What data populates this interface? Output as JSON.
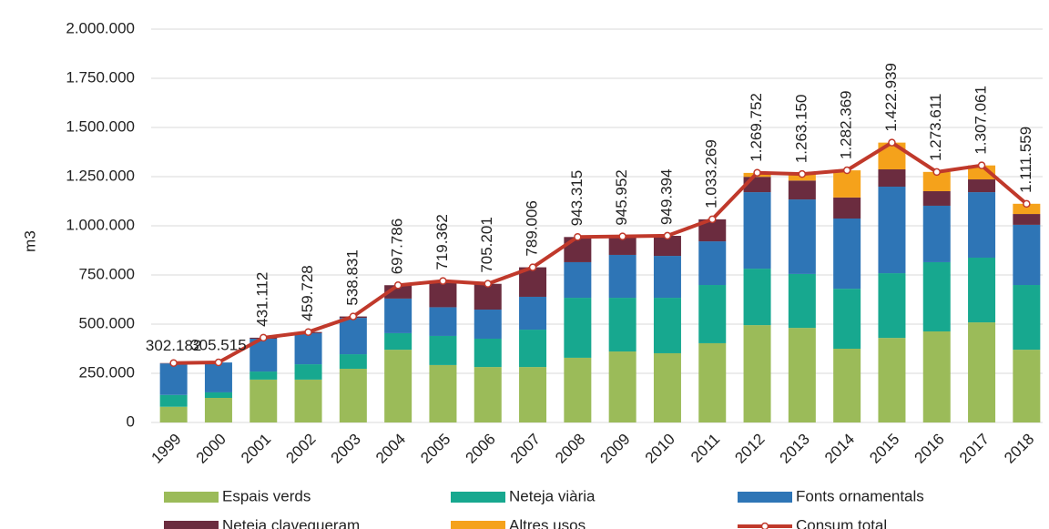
{
  "chart_data": {
    "type": "bar",
    "stacked": true,
    "y_label": "m3",
    "categories": [
      "1999",
      "2000",
      "2001",
      "2002",
      "2003",
      "2004",
      "2005",
      "2006",
      "2007",
      "2008",
      "2009",
      "2010",
      "2011",
      "2012",
      "2013",
      "2014",
      "2015",
      "2016",
      "2017",
      "2018"
    ],
    "ylim": [
      0,
      2000000
    ],
    "yticks": [
      0,
      {
        "value": 250000,
        "label": "250.000"
      },
      {
        "value": 500000,
        "label": "500.000"
      },
      {
        "value": 750000,
        "label": "750.000"
      },
      {
        "value": 1000000,
        "label": "1.000.000"
      },
      {
        "value": 1250000,
        "label": "1.250.000"
      },
      {
        "value": 1500000,
        "label": "1.500.000"
      },
      {
        "value": 1750000,
        "label": "1.750.000"
      },
      {
        "value": 2000000,
        "label": "2.000.000"
      }
    ],
    "grid": true,
    "series": [
      {
        "name": "Espais verds",
        "color": "#9bbb59",
        "values": [
          80000,
          125000,
          218000,
          218000,
          273000,
          370000,
          292000,
          282000,
          282000,
          329000,
          361000,
          352000,
          403000,
          495000,
          481000,
          375000,
          430000,
          463000,
          509000,
          370000
        ]
      },
      {
        "name": "Neteja viària",
        "color": "#17a88f",
        "values": [
          60000,
          28000,
          41000,
          78000,
          74000,
          84000,
          148000,
          144000,
          190000,
          305000,
          273000,
          282000,
          296000,
          287000,
          274000,
          305000,
          329000,
          352000,
          329000,
          329000
        ]
      },
      {
        "name": "Fonts ornamentals",
        "color": "#2e75b6",
        "values": [
          160000,
          152000,
          167000,
          158000,
          185000,
          176000,
          146000,
          148000,
          167000,
          181000,
          218000,
          213000,
          222000,
          389000,
          379000,
          357000,
          440000,
          287000,
          333000,
          306000
        ]
      },
      {
        "name": "Neteja clavegueram",
        "color": "#6b2c3f",
        "values": [
          2000,
          0,
          5000,
          6000,
          7000,
          68000,
          131000,
          131000,
          150000,
          128000,
          94000,
          102000,
          112000,
          78000,
          96000,
          107000,
          88000,
          74000,
          65000,
          55000
        ]
      },
      {
        "name": "Altres usos",
        "color": "#f5a21b",
        "values": [
          0,
          0,
          0,
          0,
          0,
          0,
          2000,
          0,
          0,
          0,
          0,
          0,
          0,
          20000,
          33000,
          138000,
          136000,
          98000,
          71000,
          52000
        ]
      },
      {
        "name": "Consum total",
        "color": "#c0392b",
        "type": "line",
        "values": [
          302182,
          305515,
          431112,
          459728,
          538831,
          697786,
          719362,
          705201,
          789006,
          943315,
          945952,
          949394,
          1033269,
          1269752,
          1263150,
          1282369,
          1422939,
          1273611,
          1307061,
          1111559
        ],
        "value_labels": [
          "302.182",
          "305.515",
          "431.112",
          "459.728",
          "538.831",
          "697.786",
          "719.362",
          "705.201",
          "789.006",
          "943.315",
          "945.952",
          "949.394",
          "1.033.269",
          "1.269.752",
          "1.263.150",
          "1.282.369",
          "1.422.939",
          "1.273.611",
          "1.307.061",
          "1.111.559"
        ]
      }
    ]
  }
}
